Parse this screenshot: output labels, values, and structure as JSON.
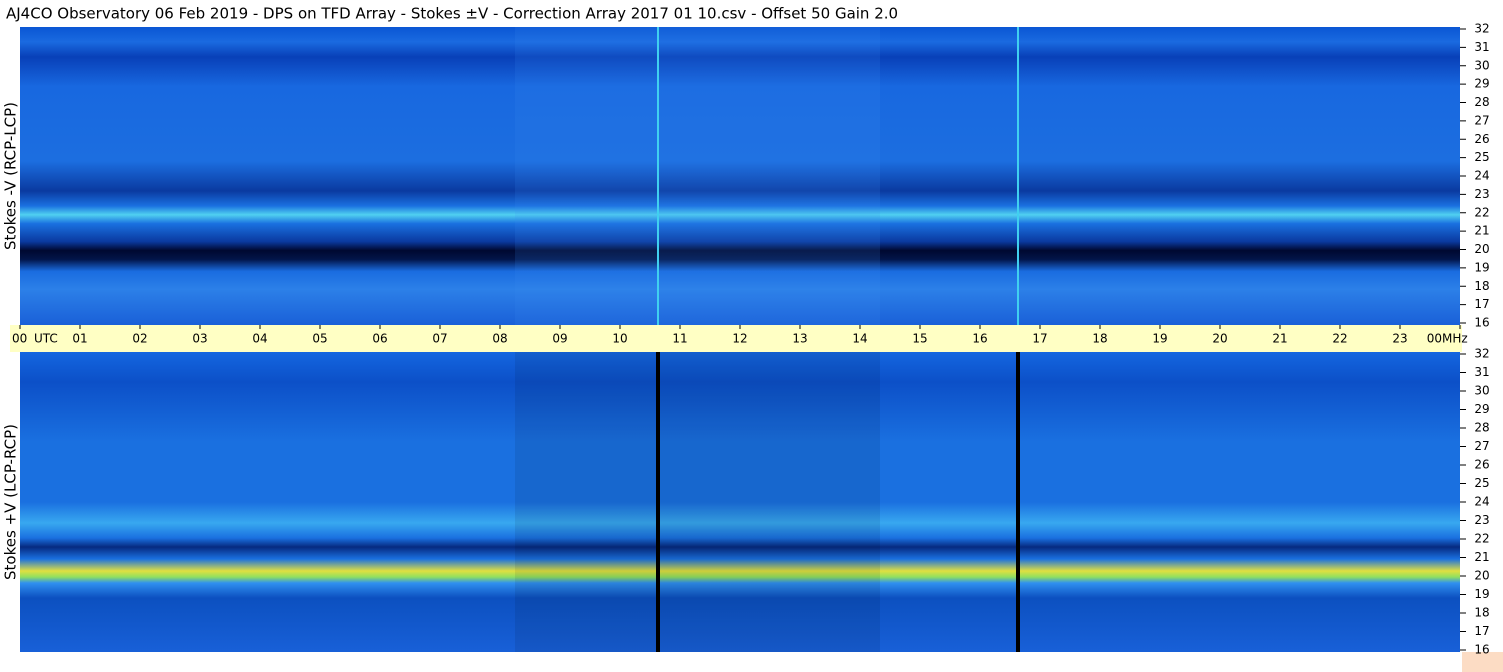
{
  "chart_data": {
    "type": "heatmap",
    "title": "AJ4CO Observatory  06 Feb 2019  -  DPS on TFD Array  -  Stokes ±V  -  Correction Array 2017 01 10.csv  -  Offset 50  Gain 2.0",
    "x_unit": "UTC",
    "y_unit": "MHz",
    "xlim": [
      0,
      24
    ],
    "xticks": [
      {
        "value": 0,
        "label": "00"
      },
      {
        "value": 1,
        "label": "01"
      },
      {
        "value": 2,
        "label": "02"
      },
      {
        "value": 3,
        "label": "03"
      },
      {
        "value": 4,
        "label": "04"
      },
      {
        "value": 5,
        "label": "05"
      },
      {
        "value": 6,
        "label": "06"
      },
      {
        "value": 7,
        "label": "07"
      },
      {
        "value": 8,
        "label": "08"
      },
      {
        "value": 9,
        "label": "09"
      },
      10,
      11,
      12,
      13,
      14,
      15,
      16,
      17,
      18,
      19,
      20,
      21,
      22,
      23,
      {
        "value": 24,
        "label": "00"
      }
    ],
    "panels": [
      {
        "ylabel": "Stokes -V (RCP-LCP)",
        "ylim": [
          16,
          32
        ],
        "yticks": [
          16,
          17,
          18,
          19,
          20,
          21,
          22,
          23,
          24,
          25,
          26,
          27,
          28,
          29,
          30,
          31,
          32
        ]
      },
      {
        "ylabel": "Stokes +V (LCP-RCP)",
        "ylim": [
          16,
          32
        ],
        "yticks": [
          16,
          17,
          18,
          19,
          20,
          21,
          22,
          23,
          24,
          25,
          26,
          27,
          28,
          29,
          30,
          31,
          32
        ]
      }
    ]
  }
}
